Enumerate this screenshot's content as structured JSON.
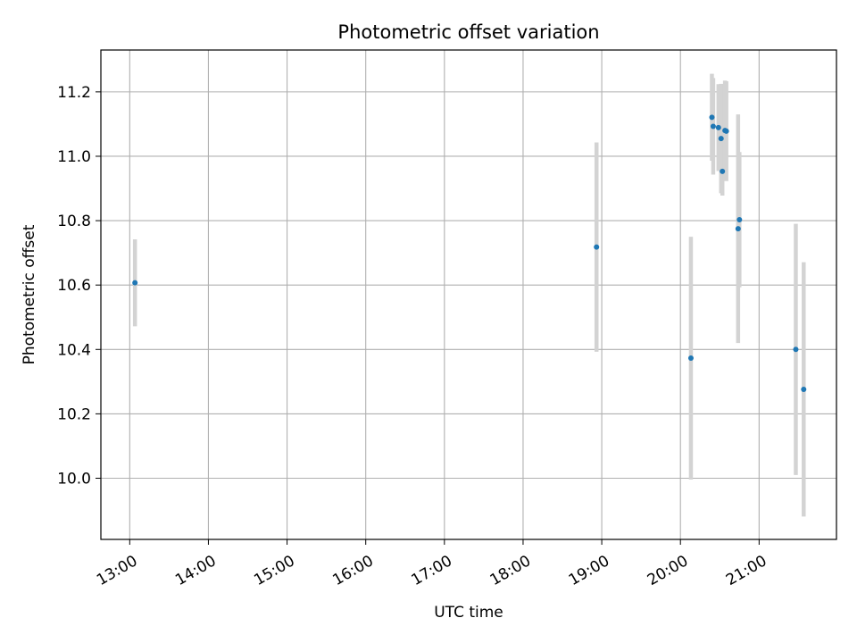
{
  "chart_data": {
    "type": "scatter",
    "title": "Photometric offset variation",
    "xlabel": "UTC time",
    "ylabel": "Photometric offset",
    "xlim": [
      "12:38",
      "21:59"
    ],
    "ylim": [
      9.81,
      11.33
    ],
    "grid": true,
    "x_tick_labels": [
      "13:00",
      "14:00",
      "15:00",
      "16:00",
      "17:00",
      "18:00",
      "19:00",
      "20:00",
      "21:00"
    ],
    "x_ticks": [
      "13:00",
      "14:00",
      "15:00",
      "16:00",
      "17:00",
      "18:00",
      "19:00",
      "20:00",
      "21:00"
    ],
    "y_ticks": [
      10.0,
      10.2,
      10.4,
      10.6,
      10.8,
      11.0,
      11.2
    ],
    "y_tick_labels": [
      "10.0",
      "10.2",
      "10.4",
      "10.6",
      "10.8",
      "11.0",
      "11.2"
    ],
    "colors": {
      "points": "#1f77b4",
      "errorbars": "#d3d3d3",
      "grid": "#b0b0b0"
    },
    "points": [
      {
        "x": "13:04",
        "y": 10.607,
        "yerr": 0.135
      },
      {
        "x": "18:56",
        "y": 10.718,
        "yerr": 0.325
      },
      {
        "x": "20:08",
        "y": 10.373,
        "yerr": 0.377
      },
      {
        "x": "20:24",
        "y": 11.121,
        "yerr": 0.135
      },
      {
        "x": "20:25",
        "y": 11.093,
        "yerr": 0.15
      },
      {
        "x": "20:29",
        "y": 11.089,
        "yerr": 0.135
      },
      {
        "x": "20:31",
        "y": 11.055,
        "yerr": 0.17
      },
      {
        "x": "20:32",
        "y": 10.953,
        "yerr": 0.075
      },
      {
        "x": "20:34",
        "y": 11.08,
        "yerr": 0.155
      },
      {
        "x": "20:35",
        "y": 11.078,
        "yerr": 0.155
      },
      {
        "x": "20:44",
        "y": 10.775,
        "yerr": 0.355
      },
      {
        "x": "20:45",
        "y": 10.803,
        "yerr": 0.21
      },
      {
        "x": "21:28",
        "y": 10.4,
        "yerr": 0.39
      },
      {
        "x": "21:34",
        "y": 10.276,
        "yerr": 0.395
      }
    ]
  }
}
